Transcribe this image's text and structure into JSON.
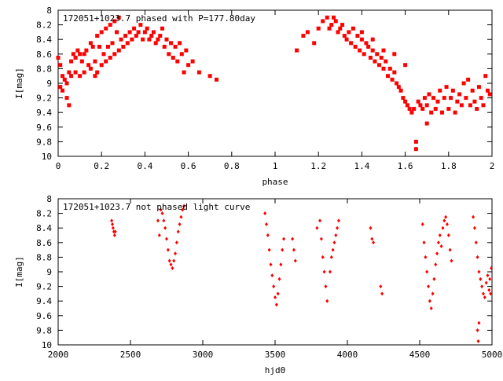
{
  "colors": {
    "points": "#ff0000",
    "axis": "#000000",
    "background": "#ffffff"
  },
  "chart_data": [
    {
      "type": "scatter",
      "title": "172051+1023.7 phased with P=177.80day",
      "xlabel": "phase",
      "ylabel": "I[mag]",
      "xlim": [
        0,
        2
      ],
      "ylim": [
        8,
        10
      ],
      "y_inverted": true,
      "grid": false,
      "legend": "none",
      "marker": "filled-square",
      "x_ticks": [
        0,
        0.2,
        0.4,
        0.6,
        0.8,
        1,
        1.2,
        1.4,
        1.6,
        1.8,
        2
      ],
      "x_tick_labels": [
        "0",
        "0.2",
        "0.4",
        "0.6",
        "0.8",
        "1",
        "1.2",
        "1.4",
        "1.6",
        "1.8",
        "2"
      ],
      "y_ticks": [
        8,
        8.2,
        8.4,
        8.6,
        8.8,
        9,
        9.2,
        9.4,
        9.6,
        9.8,
        10
      ],
      "y_tick_labels": [
        "8",
        "8.2",
        "8.4",
        "8.6",
        "8.8",
        "9",
        "9.2",
        "9.4",
        "9.6",
        "9.8",
        "10"
      ],
      "points": [
        [
          0.0,
          8.65
        ],
        [
          0.01,
          8.75
        ],
        [
          0.01,
          9.05
        ],
        [
          0.02,
          8.9
        ],
        [
          0.02,
          9.1
        ],
        [
          0.03,
          8.95
        ],
        [
          0.04,
          9.0
        ],
        [
          0.04,
          9.2
        ],
        [
          0.05,
          8.85
        ],
        [
          0.05,
          9.3
        ],
        [
          0.06,
          8.9
        ],
        [
          0.06,
          8.7
        ],
        [
          0.07,
          8.6
        ],
        [
          0.08,
          8.65
        ],
        [
          0.08,
          8.85
        ],
        [
          0.09,
          8.55
        ],
        [
          0.1,
          8.6
        ],
        [
          0.1,
          8.9
        ],
        [
          0.11,
          8.7
        ],
        [
          0.12,
          8.6
        ],
        [
          0.12,
          8.85
        ],
        [
          0.13,
          8.55
        ],
        [
          0.14,
          8.75
        ],
        [
          0.15,
          8.45
        ],
        [
          0.15,
          8.8
        ],
        [
          0.16,
          8.5
        ],
        [
          0.17,
          8.7
        ],
        [
          0.17,
          8.9
        ],
        [
          0.18,
          8.35
        ],
        [
          0.18,
          8.85
        ],
        [
          0.19,
          8.5
        ],
        [
          0.2,
          8.3
        ],
        [
          0.2,
          8.75
        ],
        [
          0.21,
          8.6
        ],
        [
          0.22,
          8.25
        ],
        [
          0.22,
          8.7
        ],
        [
          0.23,
          8.5
        ],
        [
          0.24,
          8.2
        ],
        [
          0.24,
          8.65
        ],
        [
          0.25,
          8.45
        ],
        [
          0.26,
          8.15
        ],
        [
          0.26,
          8.6
        ],
        [
          0.27,
          8.3
        ],
        [
          0.28,
          8.55
        ],
        [
          0.28,
          8.1
        ],
        [
          0.29,
          8.4
        ],
        [
          0.3,
          8.5
        ],
        [
          0.31,
          8.35
        ],
        [
          0.32,
          8.45
        ],
        [
          0.33,
          8.3
        ],
        [
          0.34,
          8.4
        ],
        [
          0.35,
          8.25
        ],
        [
          0.36,
          8.35
        ],
        [
          0.37,
          8.3
        ],
        [
          0.38,
          8.2
        ],
        [
          0.39,
          8.4
        ],
        [
          0.4,
          8.3
        ],
        [
          0.41,
          8.25
        ],
        [
          0.42,
          8.4
        ],
        [
          0.43,
          8.35
        ],
        [
          0.44,
          8.3
        ],
        [
          0.45,
          8.45
        ],
        [
          0.46,
          8.4
        ],
        [
          0.47,
          8.35
        ],
        [
          0.48,
          8.25
        ],
        [
          0.49,
          8.5
        ],
        [
          0.5,
          8.4
        ],
        [
          0.51,
          8.6
        ],
        [
          0.52,
          8.45
        ],
        [
          0.53,
          8.65
        ],
        [
          0.54,
          8.5
        ],
        [
          0.55,
          8.7
        ],
        [
          0.56,
          8.45
        ],
        [
          0.57,
          8.6
        ],
        [
          0.58,
          8.85
        ],
        [
          0.59,
          8.55
        ],
        [
          0.6,
          8.75
        ],
        [
          0.62,
          8.7
        ],
        [
          0.65,
          8.85
        ],
        [
          0.7,
          8.9
        ],
        [
          0.73,
          8.95
        ],
        [
          1.1,
          8.55
        ],
        [
          1.13,
          8.35
        ],
        [
          1.15,
          8.3
        ],
        [
          1.18,
          8.45
        ],
        [
          1.2,
          8.25
        ],
        [
          1.22,
          8.15
        ],
        [
          1.24,
          8.1
        ],
        [
          1.25,
          8.25
        ],
        [
          1.26,
          8.2
        ],
        [
          1.27,
          8.1
        ],
        [
          1.28,
          8.15
        ],
        [
          1.29,
          8.3
        ],
        [
          1.3,
          8.25
        ],
        [
          1.31,
          8.2
        ],
        [
          1.32,
          8.35
        ],
        [
          1.33,
          8.4
        ],
        [
          1.34,
          8.3
        ],
        [
          1.35,
          8.45
        ],
        [
          1.36,
          8.25
        ],
        [
          1.37,
          8.5
        ],
        [
          1.38,
          8.35
        ],
        [
          1.39,
          8.55
        ],
        [
          1.4,
          8.4
        ],
        [
          1.41,
          8.6
        ],
        [
          1.42,
          8.45
        ],
        [
          1.43,
          8.5
        ],
        [
          1.44,
          8.65
        ],
        [
          1.45,
          8.55
        ],
        [
          1.46,
          8.7
        ],
        [
          1.47,
          8.6
        ],
        [
          1.48,
          8.75
        ],
        [
          1.49,
          8.65
        ],
        [
          1.5,
          8.8
        ],
        [
          1.51,
          8.7
        ],
        [
          1.52,
          8.9
        ],
        [
          1.53,
          8.8
        ],
        [
          1.54,
          8.95
        ],
        [
          1.55,
          8.85
        ],
        [
          1.56,
          9.0
        ],
        [
          1.57,
          9.05
        ],
        [
          1.58,
          9.1
        ],
        [
          1.59,
          9.2
        ],
        [
          1.6,
          9.25
        ],
        [
          1.61,
          9.3
        ],
        [
          1.62,
          9.35
        ],
        [
          1.63,
          9.4
        ],
        [
          1.64,
          9.35
        ],
        [
          1.65,
          9.8
        ],
        [
          1.65,
          9.9
        ],
        [
          1.66,
          9.25
        ],
        [
          1.67,
          9.3
        ],
        [
          1.68,
          9.35
        ],
        [
          1.69,
          9.2
        ],
        [
          1.7,
          9.3
        ],
        [
          1.71,
          9.15
        ],
        [
          1.72,
          9.4
        ],
        [
          1.73,
          9.2
        ],
        [
          1.74,
          9.35
        ],
        [
          1.75,
          9.25
        ],
        [
          1.76,
          9.1
        ],
        [
          1.77,
          9.4
        ],
        [
          1.78,
          9.2
        ],
        [
          1.79,
          9.05
        ],
        [
          1.8,
          9.35
        ],
        [
          1.81,
          9.2
        ],
        [
          1.82,
          9.1
        ],
        [
          1.83,
          9.4
        ],
        [
          1.84,
          9.25
        ],
        [
          1.85,
          9.15
        ],
        [
          1.86,
          9.3
        ],
        [
          1.87,
          9.0
        ],
        [
          1.88,
          9.2
        ],
        [
          1.89,
          8.95
        ],
        [
          1.9,
          9.3
        ],
        [
          1.91,
          9.1
        ],
        [
          1.92,
          9.25
        ],
        [
          1.93,
          9.35
        ],
        [
          1.94,
          9.05
        ],
        [
          1.95,
          9.2
        ],
        [
          1.96,
          9.3
        ],
        [
          1.97,
          8.9
        ],
        [
          1.98,
          9.1
        ],
        [
          1.99,
          9.15
        ],
        [
          1.7,
          9.55
        ],
        [
          1.6,
          8.75
        ],
        [
          1.55,
          8.6
        ],
        [
          1.5,
          8.55
        ],
        [
          1.45,
          8.4
        ],
        [
          1.4,
          8.3
        ]
      ]
    },
    {
      "type": "scatter",
      "title": "172051+1023.7 not phased light curve",
      "xlabel": "hjd0",
      "ylabel": "I[mag]",
      "xlim": [
        2000,
        5000
      ],
      "ylim": [
        8,
        10
      ],
      "y_inverted": true,
      "grid": false,
      "legend": "none",
      "marker": "filled-diamond",
      "x_ticks": [
        2000,
        2500,
        3000,
        3500,
        4000,
        4500,
        5000
      ],
      "x_tick_labels": [
        "2000",
        "2500",
        "3000",
        "3500",
        "4000",
        "4500",
        "5000"
      ],
      "y_ticks": [
        8,
        8.2,
        8.4,
        8.6,
        8.8,
        9,
        9.2,
        9.4,
        9.6,
        9.8,
        10
      ],
      "y_tick_labels": [
        "8",
        "8.2",
        "8.4",
        "8.6",
        "8.8",
        "9",
        "9.2",
        "9.4",
        "9.6",
        "9.8",
        "10"
      ],
      "points": [
        [
          2370,
          8.3
        ],
        [
          2375,
          8.35
        ],
        [
          2380,
          8.4
        ],
        [
          2385,
          8.45
        ],
        [
          2390,
          8.5
        ],
        [
          2395,
          8.45
        ],
        [
          2690,
          8.3
        ],
        [
          2700,
          8.5
        ],
        [
          2710,
          8.15
        ],
        [
          2720,
          8.2
        ],
        [
          2730,
          8.3
        ],
        [
          2740,
          8.4
        ],
        [
          2750,
          8.55
        ],
        [
          2760,
          8.7
        ],
        [
          2770,
          8.85
        ],
        [
          2780,
          8.9
        ],
        [
          2790,
          8.95
        ],
        [
          2800,
          8.85
        ],
        [
          2810,
          8.75
        ],
        [
          2820,
          8.6
        ],
        [
          2830,
          8.45
        ],
        [
          2840,
          8.35
        ],
        [
          2850,
          8.25
        ],
        [
          2860,
          8.15
        ],
        [
          2870,
          8.1
        ],
        [
          3430,
          8.2
        ],
        [
          3440,
          8.35
        ],
        [
          3450,
          8.5
        ],
        [
          3460,
          8.7
        ],
        [
          3470,
          8.9
        ],
        [
          3480,
          9.05
        ],
        [
          3490,
          9.2
        ],
        [
          3500,
          9.35
        ],
        [
          3510,
          9.45
        ],
        [
          3520,
          9.3
        ],
        [
          3530,
          9.1
        ],
        [
          3540,
          8.9
        ],
        [
          3550,
          8.7
        ],
        [
          3560,
          8.55
        ],
        [
          3620,
          8.55
        ],
        [
          3630,
          8.7
        ],
        [
          3640,
          8.85
        ],
        [
          3790,
          8.4
        ],
        [
          3810,
          8.3
        ],
        [
          3820,
          8.55
        ],
        [
          3830,
          8.8
        ],
        [
          3840,
          9.0
        ],
        [
          3850,
          9.2
        ],
        [
          3860,
          9.4
        ],
        [
          3880,
          9.0
        ],
        [
          3890,
          8.8
        ],
        [
          3900,
          8.7
        ],
        [
          3910,
          8.6
        ],
        [
          3920,
          8.5
        ],
        [
          3930,
          8.4
        ],
        [
          3940,
          8.3
        ],
        [
          4160,
          8.4
        ],
        [
          4170,
          8.55
        ],
        [
          4180,
          8.6
        ],
        [
          4230,
          9.2
        ],
        [
          4240,
          9.3
        ],
        [
          4520,
          8.35
        ],
        [
          4530,
          8.6
        ],
        [
          4540,
          8.8
        ],
        [
          4550,
          9.0
        ],
        [
          4560,
          9.2
        ],
        [
          4570,
          9.4
        ],
        [
          4580,
          9.5
        ],
        [
          4590,
          9.3
        ],
        [
          4600,
          9.1
        ],
        [
          4610,
          8.9
        ],
        [
          4620,
          8.75
        ],
        [
          4630,
          8.6
        ],
        [
          4640,
          8.5
        ],
        [
          4650,
          8.65
        ],
        [
          4660,
          8.4
        ],
        [
          4670,
          8.3
        ],
        [
          4680,
          8.25
        ],
        [
          4690,
          8.35
        ],
        [
          4700,
          8.5
        ],
        [
          4710,
          8.7
        ],
        [
          4720,
          8.85
        ],
        [
          4870,
          8.25
        ],
        [
          4880,
          8.4
        ],
        [
          4890,
          8.6
        ],
        [
          4900,
          8.8
        ],
        [
          4910,
          9.0
        ],
        [
          4920,
          9.1
        ],
        [
          4930,
          9.2
        ],
        [
          4940,
          9.3
        ],
        [
          4950,
          9.35
        ],
        [
          4960,
          9.15
        ],
        [
          4970,
          9.05
        ],
        [
          4980,
          9.25
        ],
        [
          4990,
          9.3
        ],
        [
          4900,
          9.8
        ],
        [
          4905,
          9.95
        ],
        [
          4910,
          9.7
        ],
        [
          4995,
          8.95
        ],
        [
          4985,
          9.1
        ]
      ]
    }
  ]
}
